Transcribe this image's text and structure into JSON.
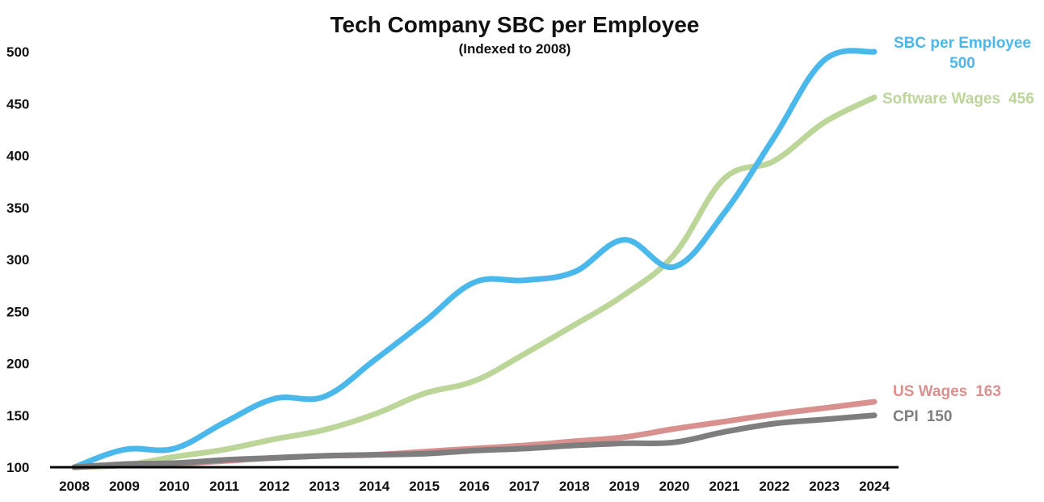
{
  "chart_data": {
    "type": "line",
    "title": "Tech Company SBC per Employee",
    "subtitle": "(Indexed to 2008)",
    "xlabel": "",
    "ylabel": "",
    "x": [
      "2008",
      "2009",
      "2010",
      "2011",
      "2012",
      "2013",
      "2014",
      "2015",
      "2016",
      "2017",
      "2018",
      "2019",
      "2020",
      "2021",
      "2022",
      "2023",
      "2024"
    ],
    "ylim": [
      100,
      500
    ],
    "yticks": [
      100,
      150,
      200,
      250,
      300,
      350,
      400,
      450,
      500
    ],
    "grid": false,
    "legend": "end-labels",
    "series": [
      {
        "name": "SBC per Employee",
        "color": "#4AB8EA",
        "end_value": "500",
        "values": [
          100,
          117,
          118,
          143,
          166,
          168,
          203,
          240,
          278,
          280,
          288,
          319,
          293,
          345,
          418,
          492,
          500
        ]
      },
      {
        "name": "Software Wages",
        "color": "#BCD598",
        "end_value": "456",
        "values": [
          100,
          102,
          110,
          117,
          127,
          136,
          151,
          171,
          183,
          209,
          237,
          266,
          305,
          378,
          395,
          432,
          456
        ]
      },
      {
        "name": "US Wages",
        "color": "#D9918F",
        "end_value": "163",
        "values": [
          100,
          102,
          103,
          106,
          109,
          111,
          112,
          115,
          118,
          121,
          125,
          129,
          137,
          144,
          151,
          157,
          163
        ]
      },
      {
        "name": "CPI",
        "color": "#7E7E7E",
        "end_value": "150",
        "values": [
          100,
          103,
          104,
          107,
          109,
          111,
          112,
          113,
          116,
          118,
          121,
          123,
          124,
          134,
          142,
          146,
          150
        ]
      }
    ]
  }
}
